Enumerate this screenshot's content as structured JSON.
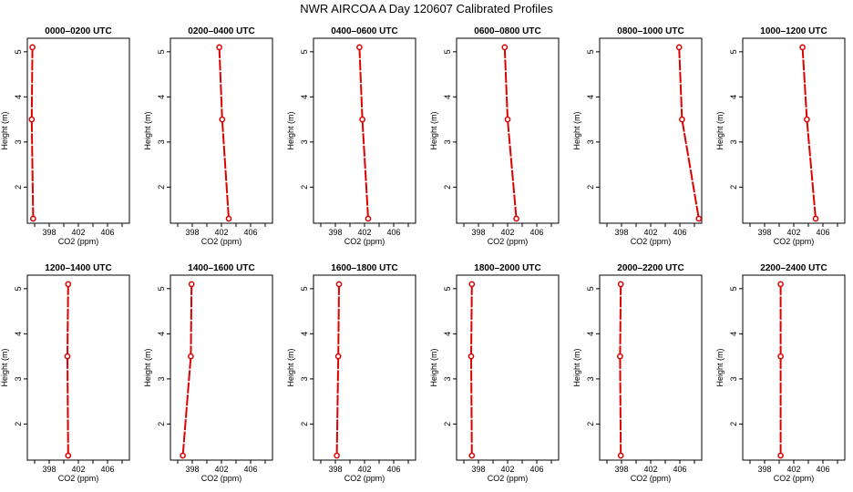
{
  "figure_title": "NWR AIRCOA A  Day 120607  Calibrated Profiles",
  "colors": {
    "series": "#dd0000",
    "axis": "#000000",
    "background": "#ffffff"
  },
  "chart_data": [
    {
      "type": "line",
      "title": "0000–0200 UTC",
      "xlabel": "CO2 (ppm)",
      "ylabel": "Height (m)",
      "xlim": [
        395,
        409
      ],
      "ylim": [
        1.2,
        5.3
      ],
      "xticks": [
        398,
        402,
        406
      ],
      "yticks": [
        2,
        3,
        4,
        5
      ],
      "x": [
        395.7,
        395.6,
        395.8
      ],
      "y": [
        5.1,
        3.5,
        1.3
      ]
    },
    {
      "type": "line",
      "title": "0200–0400 UTC",
      "xlabel": "CO2 (ppm)",
      "ylabel": "Height (m)",
      "xlim": [
        395,
        409
      ],
      "ylim": [
        1.2,
        5.3
      ],
      "xticks": [
        398,
        402,
        406
      ],
      "yticks": [
        2,
        3,
        4,
        5
      ],
      "x": [
        401.7,
        402.1,
        403.0
      ],
      "y": [
        5.1,
        3.5,
        1.3
      ]
    },
    {
      "type": "line",
      "title": "0400–0600 UTC",
      "xlabel": "CO2 (ppm)",
      "ylabel": "Height (m)",
      "xlim": [
        395,
        409
      ],
      "ylim": [
        1.2,
        5.3
      ],
      "xticks": [
        398,
        402,
        406
      ],
      "yticks": [
        2,
        3,
        4,
        5
      ],
      "x": [
        401.3,
        401.7,
        402.5
      ],
      "y": [
        5.1,
        3.5,
        1.3
      ]
    },
    {
      "type": "line",
      "title": "0600–0800 UTC",
      "xlabel": "CO2 (ppm)",
      "ylabel": "Height (m)",
      "xlim": [
        395,
        409
      ],
      "ylim": [
        1.2,
        5.3
      ],
      "xticks": [
        398,
        402,
        406
      ],
      "yticks": [
        2,
        3,
        4,
        5
      ],
      "x": [
        401.6,
        402.0,
        403.2
      ],
      "y": [
        5.1,
        3.5,
        1.3
      ]
    },
    {
      "type": "line",
      "title": "0800–1000 UTC",
      "xlabel": "CO2 (ppm)",
      "ylabel": "Height (m)",
      "xlim": [
        395,
        409
      ],
      "ylim": [
        1.2,
        5.3
      ],
      "xticks": [
        398,
        402,
        406
      ],
      "yticks": [
        2,
        3,
        4,
        5
      ],
      "x": [
        405.9,
        406.3,
        408.6
      ],
      "y": [
        5.1,
        3.5,
        1.3
      ]
    },
    {
      "type": "line",
      "title": "1000–1200 UTC",
      "xlabel": "CO2 (ppm)",
      "ylabel": "Height (m)",
      "xlim": [
        395,
        409
      ],
      "ylim": [
        1.2,
        5.3
      ],
      "xticks": [
        398,
        402,
        406
      ],
      "yticks": [
        2,
        3,
        4,
        5
      ],
      "x": [
        403.2,
        403.8,
        405.0
      ],
      "y": [
        5.1,
        3.5,
        1.3
      ]
    },
    {
      "type": "line",
      "title": "1200–1400 UTC",
      "xlabel": "CO2 (ppm)",
      "ylabel": "Height (m)",
      "xlim": [
        395,
        409
      ],
      "ylim": [
        1.2,
        5.3
      ],
      "xticks": [
        398,
        402,
        406
      ],
      "yticks": [
        2,
        3,
        4,
        5
      ],
      "x": [
        400.6,
        400.5,
        400.6
      ],
      "y": [
        5.1,
        3.5,
        1.3
      ]
    },
    {
      "type": "line",
      "title": "1400–1600 UTC",
      "xlabel": "CO2 (ppm)",
      "ylabel": "Height (m)",
      "xlim": [
        395,
        409
      ],
      "ylim": [
        1.2,
        5.3
      ],
      "xticks": [
        398,
        402,
        406
      ],
      "yticks": [
        2,
        3,
        4,
        5
      ],
      "x": [
        397.9,
        397.8,
        396.7
      ],
      "y": [
        5.1,
        3.5,
        1.3
      ]
    },
    {
      "type": "line",
      "title": "1600–1800 UTC",
      "xlabel": "CO2 (ppm)",
      "ylabel": "Height (m)",
      "xlim": [
        395,
        409
      ],
      "ylim": [
        1.2,
        5.3
      ],
      "xticks": [
        398,
        402,
        406
      ],
      "yticks": [
        2,
        3,
        4,
        5
      ],
      "x": [
        398.5,
        398.4,
        398.2
      ],
      "y": [
        5.1,
        3.5,
        1.3
      ]
    },
    {
      "type": "line",
      "title": "1800–2000 UTC",
      "xlabel": "CO2 (ppm)",
      "ylabel": "Height (m)",
      "xlim": [
        395,
        409
      ],
      "ylim": [
        1.2,
        5.3
      ],
      "xticks": [
        398,
        402,
        406
      ],
      "yticks": [
        2,
        3,
        4,
        5
      ],
      "x": [
        397.1,
        397.0,
        397.1
      ],
      "y": [
        5.1,
        3.5,
        1.3
      ]
    },
    {
      "type": "line",
      "title": "2000–2200 UTC",
      "xlabel": "CO2 (ppm)",
      "ylabel": "Height (m)",
      "xlim": [
        395,
        409
      ],
      "ylim": [
        1.2,
        5.3
      ],
      "xticks": [
        398,
        402,
        406
      ],
      "yticks": [
        2,
        3,
        4,
        5
      ],
      "x": [
        397.9,
        397.8,
        397.9
      ],
      "y": [
        5.1,
        3.5,
        1.3
      ]
    },
    {
      "type": "line",
      "title": "2200–2400 UTC",
      "xlabel": "CO2 (ppm)",
      "ylabel": "Height (m)",
      "xlim": [
        395,
        409
      ],
      "ylim": [
        1.2,
        5.3
      ],
      "xticks": [
        398,
        402,
        406
      ],
      "yticks": [
        2,
        3,
        4,
        5
      ],
      "x": [
        400.2,
        400.2,
        400.2
      ],
      "y": [
        5.1,
        3.5,
        1.3
      ]
    }
  ]
}
